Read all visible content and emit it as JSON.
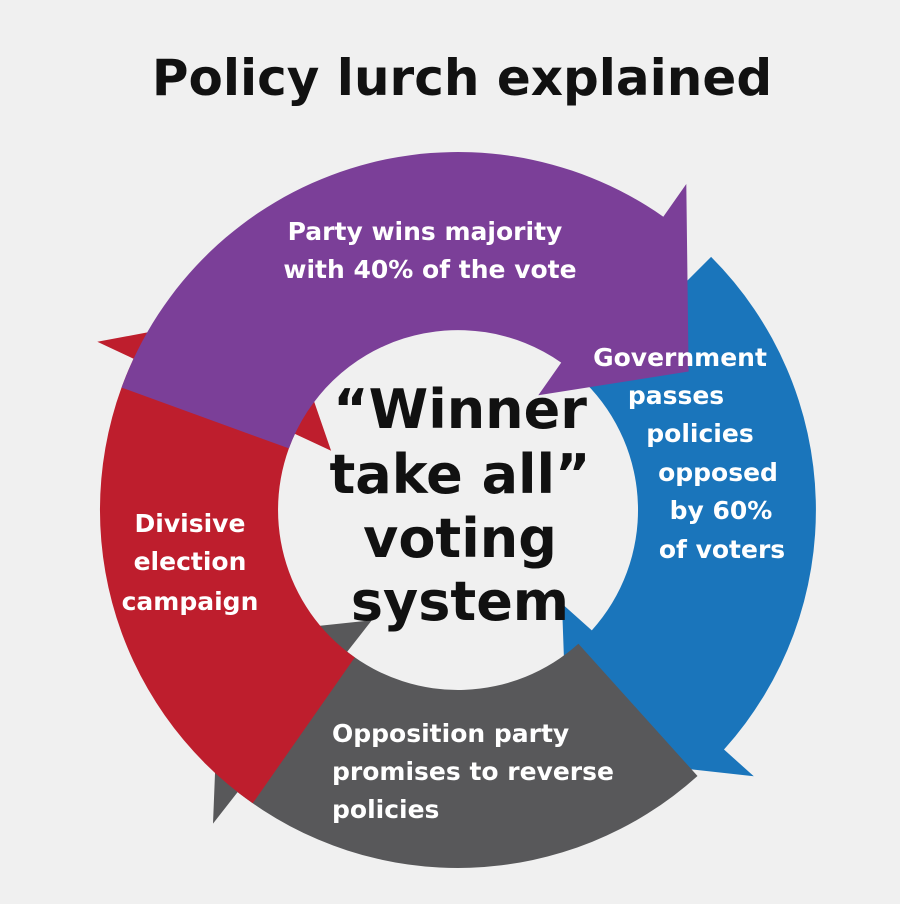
{
  "title": "Policy lurch explained",
  "center_label": [
    "“Winner",
    "take all”",
    "voting",
    "system"
  ],
  "steps": [
    {
      "label": [
        "Party wins majority",
        "with 40% of the vote"
      ]
    },
    {
      "label": [
        "Government",
        "passes",
        "policies",
        "opposed",
        "by 60%",
        "of voters"
      ]
    },
    {
      "label": [
        "Opposition party",
        "promises to reverse",
        "policies"
      ]
    },
    {
      "label": [
        "Divisive",
        "election",
        "campaign"
      ]
    }
  ]
}
